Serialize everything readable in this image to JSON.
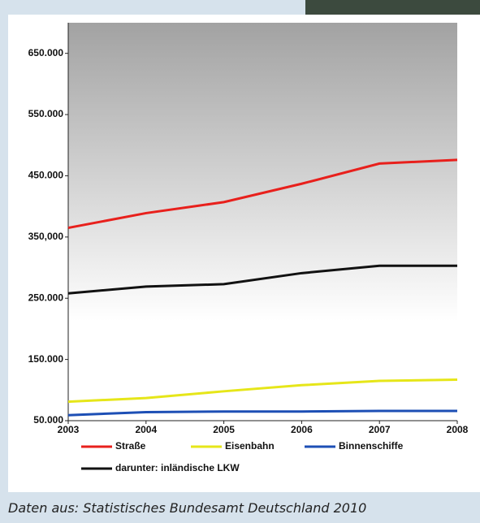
{
  "chart_data": {
    "type": "line",
    "x": [
      2003,
      2004,
      2005,
      2006,
      2007,
      2008
    ],
    "xlim": [
      2003,
      2008
    ],
    "xticks": [
      2003,
      2004,
      2005,
      2006,
      2007,
      2008
    ],
    "ylim": [
      50000,
      700000
    ],
    "yticks": [
      {
        "value": 50000,
        "label": "50.000"
      },
      {
        "value": 150000,
        "label": "150.000"
      },
      {
        "value": 250000,
        "label": "250.000"
      },
      {
        "value": 350000,
        "label": "350,000"
      },
      {
        "value": 450000,
        "label": "450.000"
      },
      {
        "value": 550000,
        "label": "550.000"
      },
      {
        "value": 650000,
        "label": "650.000"
      }
    ],
    "series": [
      {
        "name": "Straße",
        "color": "#e8201c",
        "values": [
          365000,
          389000,
          407000,
          437000,
          470000,
          476000
        ]
      },
      {
        "name": "Eisenbahn",
        "color": "#e6e619",
        "values": [
          81000,
          87000,
          98000,
          108000,
          115000,
          117000
        ]
      },
      {
        "name": "Binnenschiffe",
        "color": "#1d4fb5",
        "values": [
          59000,
          64000,
          65000,
          65000,
          66000,
          66000
        ]
      },
      {
        "name": "darunter: inländische LKW",
        "color": "#111111",
        "values": [
          258000,
          269000,
          273000,
          291000,
          303000,
          303000
        ]
      }
    ]
  },
  "caption": "Daten aus: Statistisches Bundesamt Deutschland 2010"
}
